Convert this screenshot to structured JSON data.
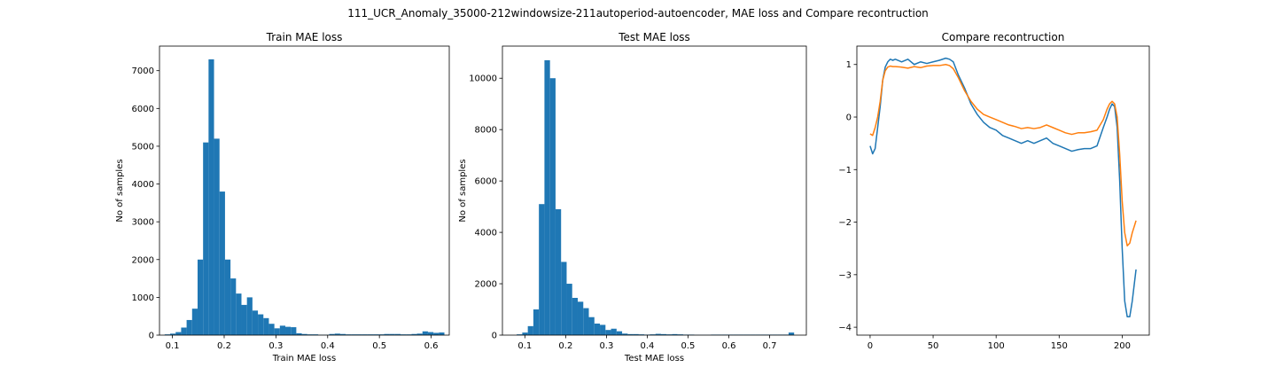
{
  "figure": {
    "suptitle": "111_UCR_Anomaly_35000-212windowsize-211autoperiod-autoencoder, MAE loss and Compare recontruction"
  },
  "chart_data": [
    {
      "type": "bar",
      "title": "Train MAE loss",
      "xlabel": "Train MAE loss",
      "ylabel": "No of samples",
      "xlim": [
        0.075,
        0.635
      ],
      "ylim": [
        0,
        7650
      ],
      "xticks": [
        0.1,
        0.2,
        0.3,
        0.4,
        0.5,
        0.6
      ],
      "xtick_labels": [
        "0.1",
        "0.2",
        "0.3",
        "0.4",
        "0.5",
        "0.6"
      ],
      "yticks": [
        0,
        1000,
        2000,
        3000,
        4000,
        5000,
        6000,
        7000
      ],
      "ytick_labels": [
        "0",
        "1000",
        "2000",
        "3000",
        "4000",
        "5000",
        "6000",
        "7000"
      ],
      "bin_start": 0.085,
      "bin_width": 0.0106,
      "values": [
        20,
        40,
        80,
        200,
        400,
        700,
        2000,
        5100,
        7300,
        5200,
        3800,
        2000,
        1500,
        1100,
        800,
        1000,
        650,
        550,
        450,
        300,
        180,
        250,
        220,
        210,
        50,
        30,
        20,
        20,
        10,
        10,
        30,
        40,
        30,
        20,
        20,
        20,
        20,
        20,
        20,
        20,
        30,
        30,
        30,
        20,
        20,
        30,
        40,
        100,
        80,
        60,
        70
      ]
    },
    {
      "type": "bar",
      "title": "Test MAE loss",
      "xlabel": "Test MAE loss",
      "ylabel": "No of samples",
      "xlim": [
        0.045,
        0.79
      ],
      "ylim": [
        0,
        11250
      ],
      "xticks": [
        0.1,
        0.2,
        0.3,
        0.4,
        0.5,
        0.6,
        0.7
      ],
      "xtick_labels": [
        "0.1",
        "0.2",
        "0.3",
        "0.4",
        "0.5",
        "0.6",
        "0.7"
      ],
      "yticks": [
        0,
        2000,
        4000,
        6000,
        8000,
        10000
      ],
      "ytick_labels": [
        "0",
        "2000",
        "4000",
        "6000",
        "8000",
        "10000"
      ],
      "bin_start": 0.08,
      "bin_width": 0.0136,
      "values": [
        30,
        100,
        350,
        1000,
        5100,
        10700,
        10000,
        4900,
        2850,
        2000,
        1450,
        1300,
        1050,
        700,
        450,
        400,
        200,
        250,
        150,
        60,
        40,
        40,
        30,
        20,
        30,
        50,
        40,
        30,
        40,
        30,
        20,
        20,
        10,
        10,
        10,
        20,
        20,
        20,
        20,
        20,
        20,
        20,
        20,
        20,
        20,
        20,
        20,
        20,
        20,
        100
      ]
    },
    {
      "type": "line",
      "title": "Compare recontruction",
      "xlabel": "",
      "ylabel": "",
      "xlim": [
        -10.5,
        221.5
      ],
      "ylim": [
        -4.15,
        1.35
      ],
      "xticks": [
        0,
        50,
        100,
        150,
        200
      ],
      "xtick_labels": [
        "0",
        "50",
        "100",
        "150",
        "200"
      ],
      "yticks": [
        1,
        0,
        -1,
        -2,
        -3,
        -4
      ],
      "ytick_labels": [
        "1",
        "0",
        "−1",
        "−2",
        "−3",
        "−4"
      ],
      "series": [
        {
          "color": "#1f77b4",
          "x": [
            0,
            2,
            4,
            6,
            8,
            10,
            12,
            14,
            16,
            18,
            20,
            25,
            30,
            35,
            40,
            45,
            50,
            55,
            60,
            63,
            66,
            70,
            75,
            80,
            85,
            90,
            95,
            100,
            105,
            110,
            115,
            120,
            125,
            130,
            135,
            140,
            145,
            150,
            155,
            160,
            165,
            170,
            175,
            180,
            185,
            188,
            190,
            192,
            194,
            196,
            198,
            200,
            202,
            204,
            206,
            208,
            210,
            211
          ],
          "y": [
            -0.55,
            -0.7,
            -0.6,
            -0.2,
            0.2,
            0.7,
            0.95,
            1.05,
            1.1,
            1.08,
            1.1,
            1.05,
            1.1,
            1.0,
            1.05,
            1.02,
            1.05,
            1.08,
            1.12,
            1.1,
            1.05,
            0.8,
            0.55,
            0.25,
            0.05,
            -0.1,
            -0.2,
            -0.25,
            -0.35,
            -0.4,
            -0.45,
            -0.5,
            -0.45,
            -0.5,
            -0.45,
            -0.4,
            -0.5,
            -0.55,
            -0.6,
            -0.65,
            -0.62,
            -0.6,
            -0.6,
            -0.55,
            -0.2,
            0.0,
            0.15,
            0.25,
            0.2,
            -0.2,
            -1.2,
            -2.5,
            -3.5,
            -3.8,
            -3.8,
            -3.5,
            -3.1,
            -2.9
          ]
        },
        {
          "color": "#ff7f0e",
          "x": [
            0,
            2,
            4,
            6,
            8,
            10,
            12,
            14,
            16,
            18,
            20,
            25,
            30,
            35,
            40,
            45,
            50,
            55,
            60,
            63,
            66,
            70,
            75,
            80,
            85,
            90,
            95,
            100,
            105,
            110,
            115,
            120,
            125,
            130,
            135,
            140,
            145,
            150,
            155,
            160,
            165,
            170,
            175,
            180,
            185,
            188,
            190,
            192,
            194,
            196,
            198,
            200,
            202,
            204,
            206,
            208,
            210,
            211
          ],
          "y": [
            -0.32,
            -0.35,
            -0.2,
            0.0,
            0.3,
            0.7,
            0.88,
            0.95,
            0.97,
            0.96,
            0.96,
            0.95,
            0.93,
            0.96,
            0.94,
            0.97,
            0.98,
            0.98,
            1.0,
            0.98,
            0.92,
            0.75,
            0.5,
            0.3,
            0.15,
            0.05,
            0.0,
            -0.05,
            -0.1,
            -0.15,
            -0.18,
            -0.22,
            -0.2,
            -0.22,
            -0.2,
            -0.15,
            -0.2,
            -0.25,
            -0.3,
            -0.33,
            -0.3,
            -0.3,
            -0.28,
            -0.25,
            -0.05,
            0.15,
            0.25,
            0.3,
            0.25,
            0.0,
            -0.7,
            -1.6,
            -2.2,
            -2.45,
            -2.4,
            -2.2,
            -2.05,
            -1.97
          ]
        }
      ]
    }
  ]
}
